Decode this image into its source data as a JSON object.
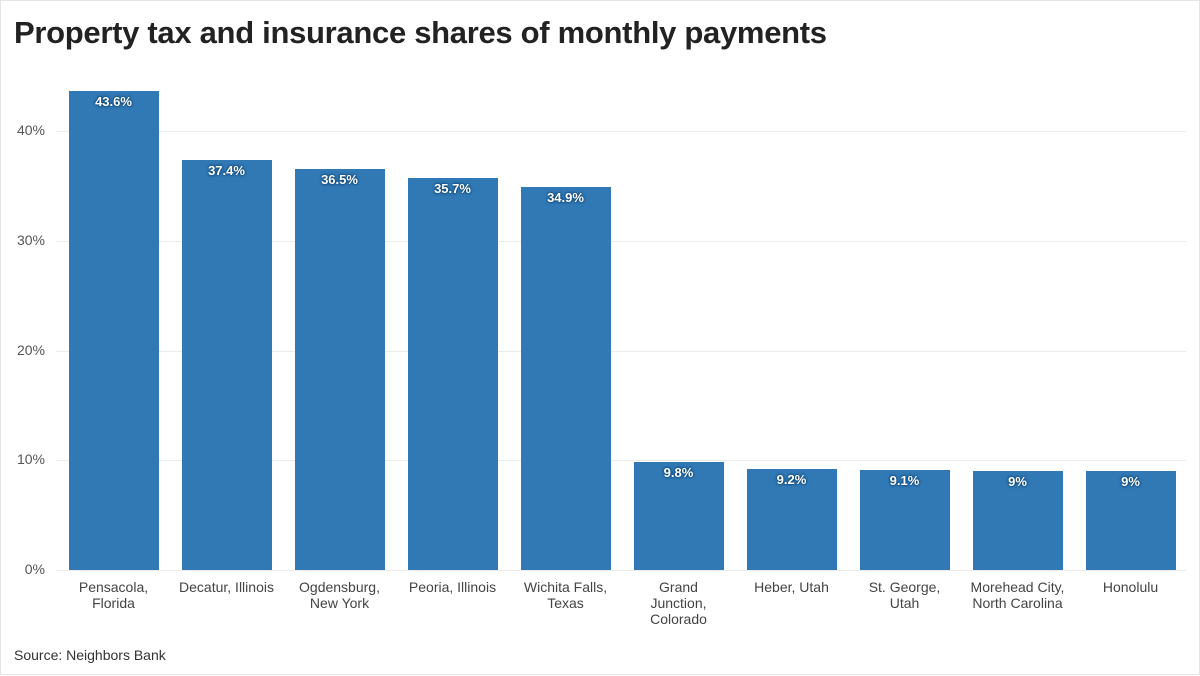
{
  "chart_data": {
    "type": "bar",
    "title": "Property tax and insurance shares of monthly payments",
    "source": "Source: Neighbors Bank",
    "categories": [
      "Pensacola, Florida",
      "Decatur, Illinois",
      "Ogdensburg, New York",
      "Peoria, Illinois",
      "Wichita Falls, Texas",
      "Grand Junction, Colorado",
      "Heber, Utah",
      "St. George, Utah",
      "Morehead City, North Carolina",
      "Honolulu"
    ],
    "values": [
      43.6,
      37.4,
      36.5,
      35.7,
      34.9,
      9.8,
      9.2,
      9.1,
      9,
      9
    ],
    "data_labels": [
      "43.6%",
      "37.4%",
      "36.5%",
      "35.7%",
      "34.9%",
      "9.8%",
      "9.2%",
      "9.1%",
      "9%",
      "9%"
    ],
    "yticks": [
      0,
      10,
      20,
      30,
      40
    ],
    "ytick_labels": [
      "0%",
      "10%",
      "20%",
      "30%",
      "40%"
    ],
    "ylim": [
      0,
      45
    ],
    "xlabel": "",
    "ylabel": "",
    "grid": true,
    "bar_color": "#3179b5"
  }
}
